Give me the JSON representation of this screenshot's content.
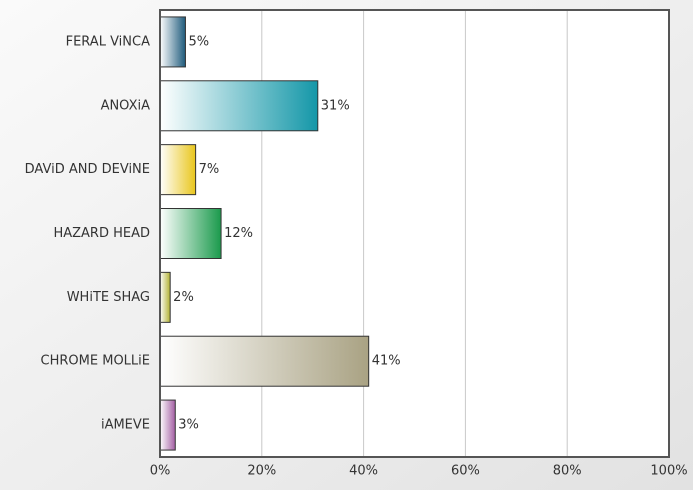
{
  "chart_data": {
    "type": "hbar",
    "categories": [
      "FERAL ViNCA",
      "ANOXiA",
      "DAViD AND DEViNE",
      "HAZARD HEAD",
      "WHiTE SHAG",
      "CHROME MOLLiE",
      "iAMEVE"
    ],
    "values": [
      5,
      31,
      7,
      12,
      2,
      41,
      3
    ],
    "value_labels": [
      "5%",
      "31%",
      "7%",
      "12%",
      "2%",
      "41%",
      "3%"
    ],
    "colors": [
      "#1f5b7c",
      "#1497a8",
      "#e9c61c",
      "#1a9a4c",
      "#b2b232",
      "#a9a283",
      "#a35ea3"
    ],
    "xlim": [
      0,
      100
    ],
    "xticks": [
      {
        "value": 0,
        "label": "0%"
      },
      {
        "value": 20,
        "label": "20%"
      },
      {
        "value": 40,
        "label": "40%"
      },
      {
        "value": 60,
        "label": "60%"
      },
      {
        "value": 80,
        "label": "80%"
      },
      {
        "value": 100,
        "label": "100%"
      }
    ],
    "grid": true
  }
}
